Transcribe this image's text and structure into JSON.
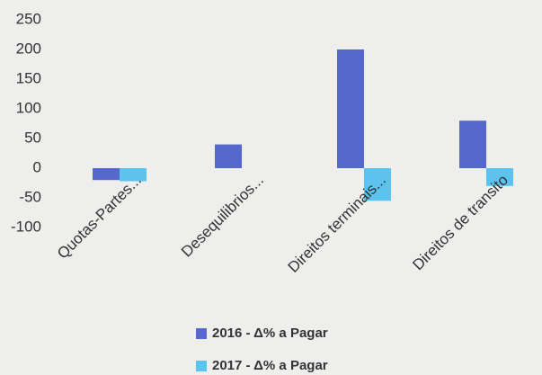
{
  "chart_data": {
    "type": "bar",
    "categories": [
      "Quotas-Partes...",
      "Desequilibrios...",
      "Direitos terminais...",
      "Direitos de transito"
    ],
    "series": [
      {
        "name": "2016  -  Δ% a Pagar",
        "color": "#5668cc",
        "values": [
          -20,
          40,
          200,
          80
        ]
      },
      {
        "name": "2017  -  Δ% a Pagar",
        "color": "#5bc3ee",
        "values": [
          -22,
          0,
          -55,
          -30
        ]
      }
    ],
    "ylim": [
      -100,
      250
    ],
    "yticks": [
      -100,
      -50,
      0,
      50,
      100,
      150,
      200,
      250
    ],
    "grid": false,
    "legend": "bottom"
  }
}
